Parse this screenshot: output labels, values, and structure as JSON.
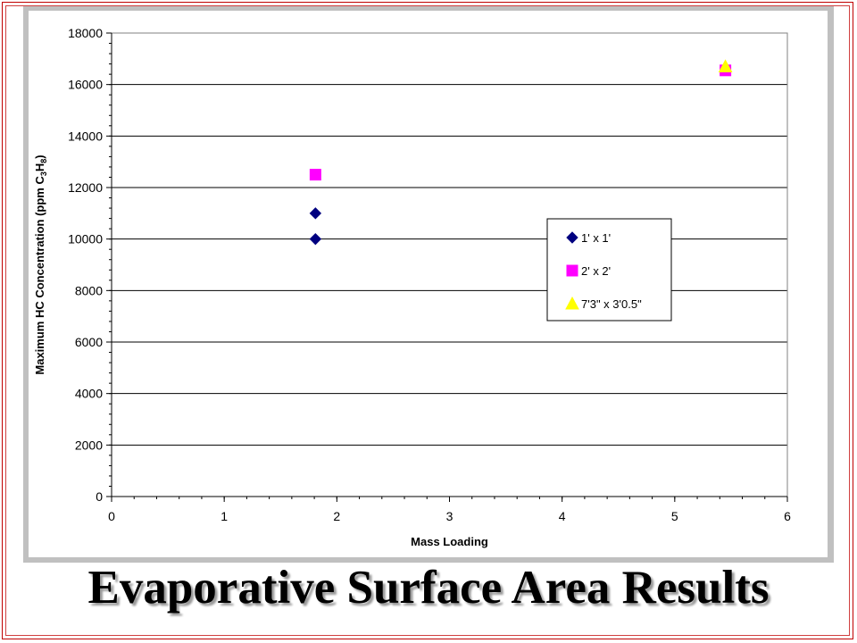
{
  "slide": {
    "title": "Evaporative Surface Area Results"
  },
  "colors": {
    "series1": "#000080",
    "series2": "#ff00ff",
    "series3": "#ffff00",
    "gridline": "#000000",
    "frame": "#c0c0c0",
    "border": "#c00000"
  },
  "chart_data": {
    "type": "scatter",
    "title": "",
    "xlabel": "Mass Loading",
    "ylabel": "Maximum HC Concentration (ppm C3H8)",
    "xlim": [
      0,
      6
    ],
    "ylim": [
      0,
      18000
    ],
    "xticks": [
      0,
      1,
      2,
      3,
      4,
      5,
      6
    ],
    "yticks": [
      0,
      2000,
      4000,
      6000,
      8000,
      10000,
      12000,
      14000,
      16000,
      18000
    ],
    "grid": {
      "horizontal": true,
      "vertical": false
    },
    "legend_position": "right",
    "series": [
      {
        "name": "1' x 1'",
        "marker": "diamond",
        "color": "#000080",
        "points": [
          {
            "x": 1.81,
            "y": 10000
          },
          {
            "x": 1.81,
            "y": 11000
          }
        ]
      },
      {
        "name": "2' x 2'",
        "marker": "square",
        "color": "#ff00ff",
        "points": [
          {
            "x": 1.81,
            "y": 12500
          },
          {
            "x": 5.45,
            "y": 16550
          }
        ]
      },
      {
        "name": "7'3\" x 3'0.5\"",
        "marker": "triangle",
        "color": "#ffff00",
        "points": [
          {
            "x": 5.45,
            "y": 16700
          }
        ]
      }
    ]
  }
}
